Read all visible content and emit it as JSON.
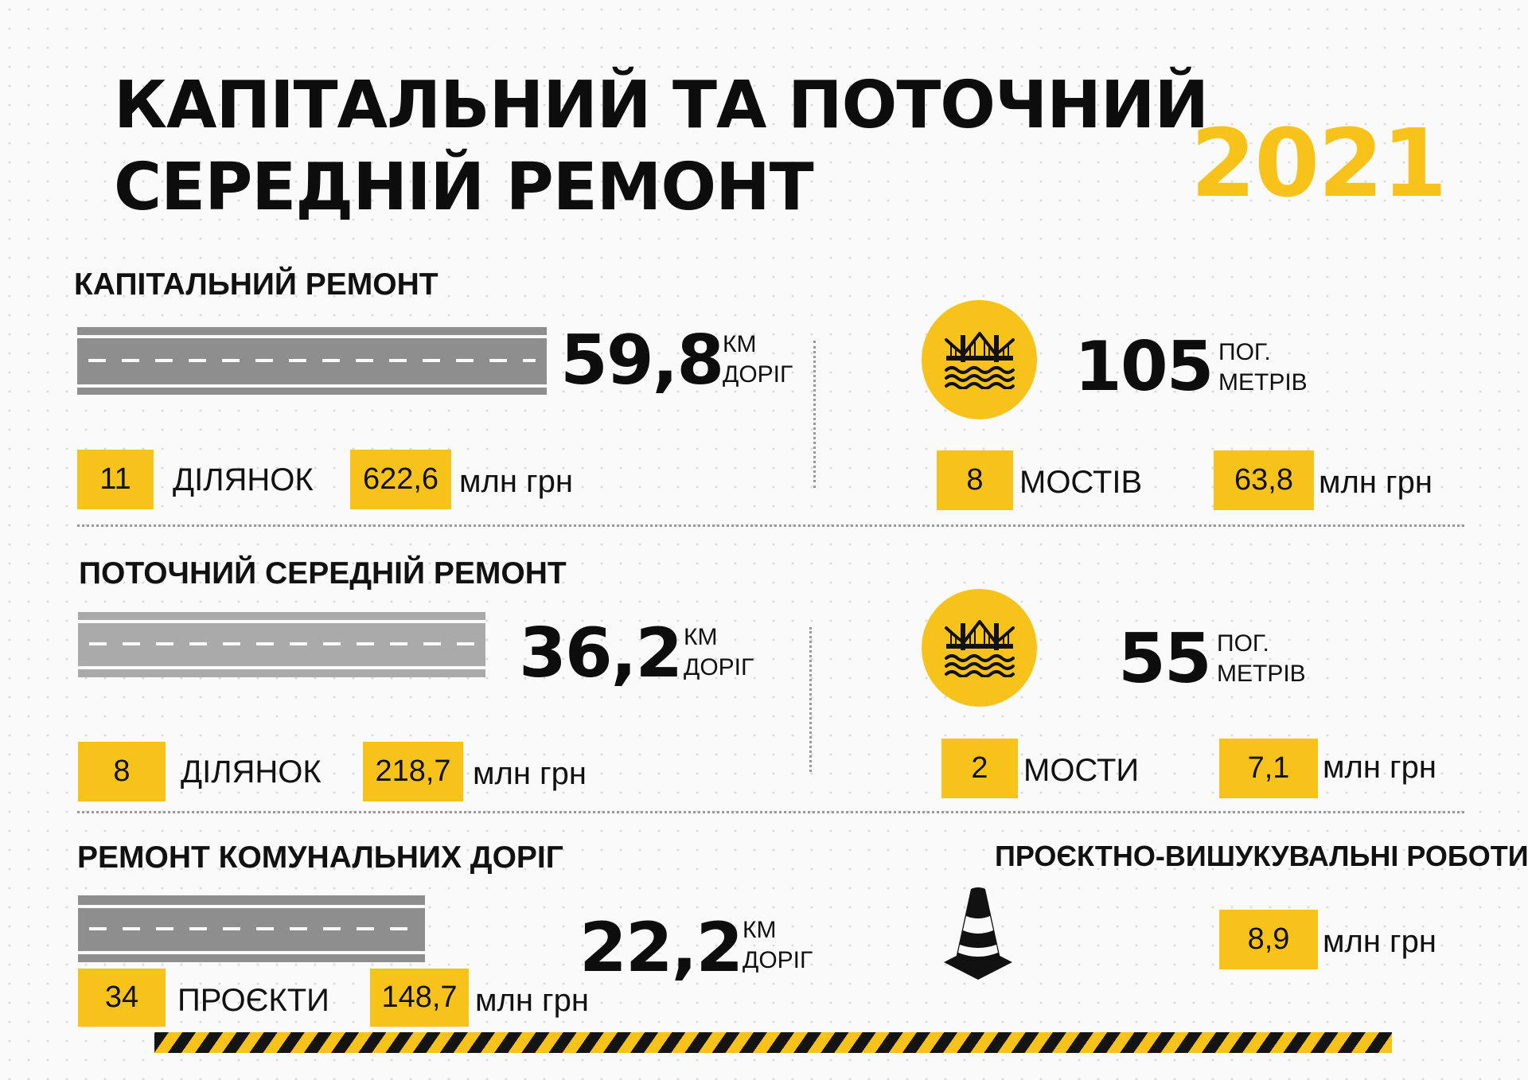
{
  "title": {
    "line1": "КАПІТАЛЬНИЙ ТА ПОТОЧНИЙ",
    "line2": "СЕРЕДНІЙ РЕМОНТ",
    "year": "2021"
  },
  "colors": {
    "accent": "#f7c31b",
    "text": "#111111",
    "road": "#8e8e8e"
  },
  "capital": {
    "heading": "КАПІТАЛЬНИЙ РЕМОНТ",
    "roads": {
      "value": "59,8",
      "unit_top": "КМ",
      "unit_bottom": "ДОРІГ"
    },
    "sites": {
      "count": "11",
      "label": "ДІЛЯНОК",
      "cost": "622,6",
      "cost_unit": "млн грн"
    },
    "bridges": {
      "icon": "bridge-icon",
      "value": "105",
      "unit_top": "ПОГ.",
      "unit_bottom": "МЕТРІВ",
      "count": "8",
      "label": "МОСТІВ",
      "cost": "63,8",
      "cost_unit": "млн грн"
    }
  },
  "current": {
    "heading": "ПОТОЧНИЙ СЕРЕДНІЙ РЕМОНТ",
    "roads": {
      "value": "36,2",
      "unit_top": "КМ",
      "unit_bottom": "ДОРІГ"
    },
    "sites": {
      "count": "8",
      "label": "ДІЛЯНОК",
      "cost": "218,7",
      "cost_unit": "млн грн"
    },
    "bridges": {
      "icon": "bridge-icon",
      "value": "55",
      "unit_top": "ПОГ.",
      "unit_bottom": "МЕТРІВ",
      "count": "2",
      "label": "МОСТИ",
      "cost": "7,1",
      "cost_unit": "млн грн"
    }
  },
  "communal": {
    "heading": "РЕМОНТ КОМУНАЛЬНИХ ДОРІГ",
    "roads": {
      "value": "22,2",
      "unit_top": "КМ",
      "unit_bottom": "ДОРІГ"
    },
    "projects": {
      "count": "34",
      "label": "ПРОЄКТИ",
      "cost": "148,7",
      "cost_unit": "млн грн"
    }
  },
  "design": {
    "heading": "ПРОЄКТНО-ВИШУКУВАЛЬНІ РОБОТИ",
    "icon": "traffic-cone-icon",
    "cost": "8,9",
    "cost_unit": "млн грн"
  }
}
